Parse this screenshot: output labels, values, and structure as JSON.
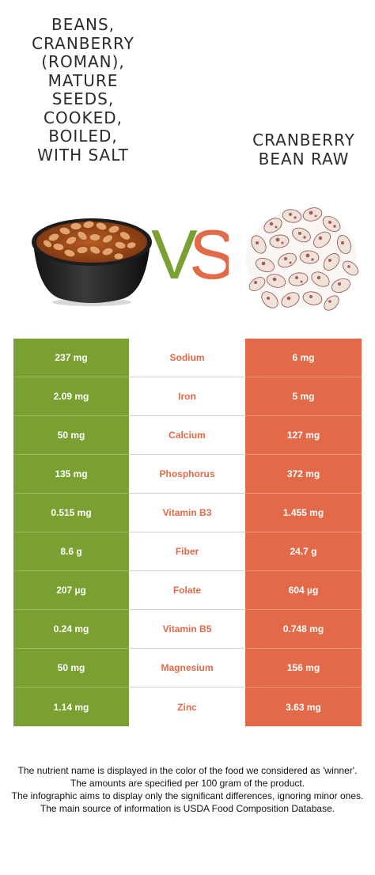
{
  "foods": {
    "left": {
      "name": "BEANS, CRANBERRY (ROMAN), MATURE SEEDS, COOKED, BOILED, WITH SALT",
      "lines": [
        "BEANS,",
        "CRANBERRY",
        "(ROMAN),",
        "MATURE",
        "SEEDS,",
        "COOKED,",
        "BOILED,",
        "WITH SALT"
      ],
      "color": "#7aa032",
      "image": "bowl-of-cooked-beans"
    },
    "right": {
      "name": "CRANBERRY BEAN RAW",
      "lines": [
        "CRANBERRY",
        "BEAN RAW"
      ],
      "color": "#e26a48",
      "image": "pile-of-raw-cranberry-beans"
    }
  },
  "vs": {
    "v": "V",
    "s": "S"
  },
  "nutrients": [
    {
      "name": "Sodium",
      "left": "237 mg",
      "right": "6 mg"
    },
    {
      "name": "Iron",
      "left": "2.09 mg",
      "right": "5 mg"
    },
    {
      "name": "Calcium",
      "left": "50 mg",
      "right": "127 mg"
    },
    {
      "name": "Phosphorus",
      "left": "135 mg",
      "right": "372 mg"
    },
    {
      "name": "Vitamin B3",
      "left": "0.515 mg",
      "right": "1.455 mg"
    },
    {
      "name": "Fiber",
      "left": "8.6 g",
      "right": "24.7 g"
    },
    {
      "name": "Folate",
      "left": "207 µg",
      "right": "604 µg"
    },
    {
      "name": "Vitamin B5",
      "left": "0.24 mg",
      "right": "0.748 mg"
    },
    {
      "name": "Magnesium",
      "left": "50 mg",
      "right": "156 mg"
    },
    {
      "name": "Zinc",
      "left": "1.14 mg",
      "right": "3.63 mg"
    }
  ],
  "notes": [
    "The nutrient name is displayed in the color of the food we considered as 'winner'.",
    "The amounts are specified per 100 gram of the product.",
    "The infographic aims to display only the significant differences, ignoring minor ones.",
    "The main source of information is USDA Food Composition Database."
  ]
}
